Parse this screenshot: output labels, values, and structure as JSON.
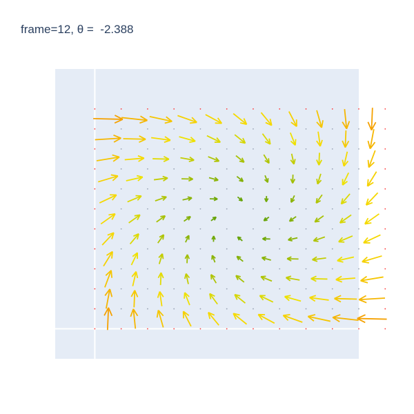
{
  "chart_data": {
    "type": "quiver",
    "title": "frame=12, θ =  -2.388",
    "xlabel": "",
    "ylabel": "",
    "xlim": [
      -1.5,
      10.0
    ],
    "ylim": [
      -1.5,
      13.0
    ],
    "grid": true,
    "legend": "none",
    "grid_x": [
      0,
      1,
      2,
      3,
      4,
      5,
      6,
      7,
      8,
      9,
      10,
      11
    ],
    "grid_y": [
      0,
      1,
      2,
      3,
      4,
      5,
      6,
      7,
      8,
      9,
      10,
      11
    ],
    "marker_color": "#ff3b3b",
    "arrow_color_low": "#5a9e0a",
    "arrow_color_mid": "#f5e400",
    "arrow_color_high": "#f5a000",
    "plot_background": "#e5ecf6"
  }
}
